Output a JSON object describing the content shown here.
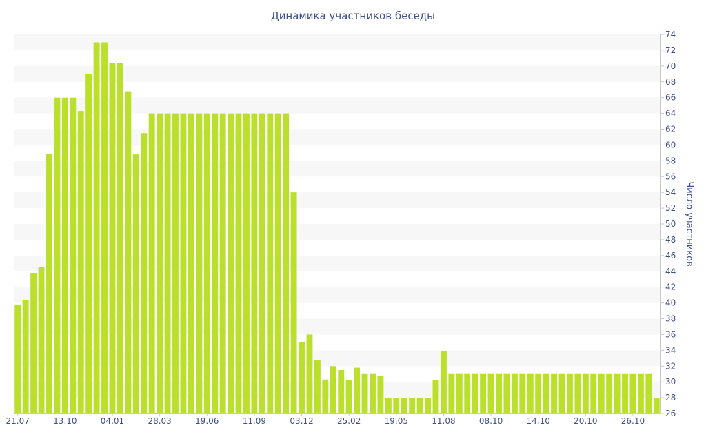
{
  "chart_data": {
    "type": "bar",
    "title": "Динамика участников беседы",
    "xlabel": "",
    "ylabel": "Число участников",
    "y_axis_side": "right",
    "ylim": [
      26,
      74
    ],
    "y_ticks": [
      26,
      28,
      30,
      32,
      34,
      36,
      38,
      40,
      42,
      44,
      46,
      48,
      50,
      52,
      54,
      56,
      58,
      60,
      62,
      64,
      66,
      68,
      70,
      72,
      74
    ],
    "x_tick_labels": [
      {
        "index": 0,
        "label": "21.07"
      },
      {
        "index": 6,
        "label": "13.10"
      },
      {
        "index": 12,
        "label": "04.01"
      },
      {
        "index": 18,
        "label": "28.03"
      },
      {
        "index": 24,
        "label": "19.06"
      },
      {
        "index": 30,
        "label": "11.09"
      },
      {
        "index": 36,
        "label": "03.12"
      },
      {
        "index": 42,
        "label": "25.02"
      },
      {
        "index": 48,
        "label": "19.05"
      },
      {
        "index": 54,
        "label": "11.08"
      },
      {
        "index": 60,
        "label": "08.10"
      },
      {
        "index": 66,
        "label": "14.10"
      },
      {
        "index": 72,
        "label": "20.10"
      },
      {
        "index": 78,
        "label": "26.10"
      }
    ],
    "values": [
      39.8,
      40.4,
      43.8,
      44.5,
      58.9,
      66,
      66,
      66,
      64.3,
      69,
      73,
      73,
      70.4,
      70.4,
      66.8,
      58.8,
      61.5,
      64,
      64,
      64,
      64,
      64,
      64,
      64,
      64,
      64,
      64,
      64,
      64,
      64,
      64,
      64,
      64,
      64,
      64,
      54,
      35,
      36,
      32.8,
      30.3,
      32,
      31.5,
      30.2,
      31.8,
      31,
      31,
      30.8,
      28,
      28,
      28,
      28,
      28,
      28,
      30.2,
      33.9,
      31,
      31,
      31,
      31,
      31,
      31,
      31,
      31,
      31,
      31,
      31,
      31,
      31,
      31,
      31,
      31,
      31,
      31,
      31,
      31,
      31,
      31,
      31,
      31,
      31,
      31,
      28
    ],
    "colors": {
      "bar": "#bbe02c",
      "band": "#f7f7f7",
      "axis_text": "#3e4f8c",
      "axis_line": "#c8c8c8"
    },
    "grid": "alternating horizontal bands",
    "legend": "none"
  }
}
